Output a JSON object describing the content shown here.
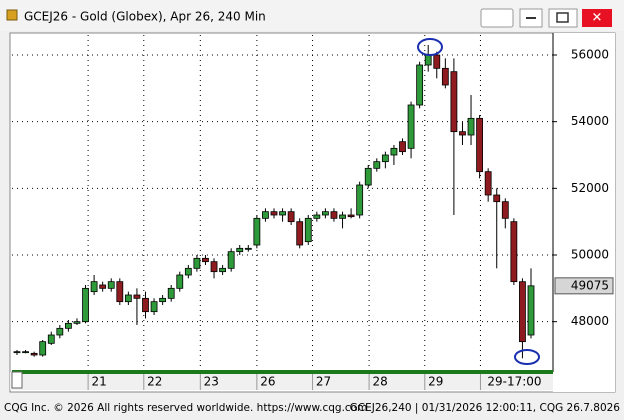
{
  "window_title": "GCEJ26 - Gold (Globex), Apr 26, 240 Min",
  "chart_data": {
    "type": "candlestick",
    "up_color": "#2f9a3a",
    "down_color": "#8e1b1f",
    "open": [
      47100,
      47100,
      47050,
      47000,
      47350,
      47600,
      47800,
      47950,
      48000,
      48900,
      49100,
      49000,
      49200,
      48600,
      48800,
      48700,
      48300,
      48600,
      48700,
      49000,
      49400,
      49600,
      49900,
      49800,
      49500,
      49600,
      50100,
      50200,
      50300,
      51100,
      51300,
      51200,
      51300,
      51000,
      50400,
      51100,
      51200,
      51300,
      51100,
      51200,
      51200,
      52100,
      52600,
      52800,
      53000,
      53400,
      53200,
      54500,
      55700,
      56000,
      55600,
      55500,
      53700,
      53600,
      54100,
      52500,
      51800,
      51600,
      51000,
      49200,
      47600
    ],
    "high": [
      47150,
      47150,
      47100,
      47450,
      47700,
      47900,
      48050,
      48100,
      49100,
      49400,
      49200,
      49300,
      49300,
      48900,
      49000,
      48900,
      48700,
      48800,
      49100,
      49500,
      49700,
      50000,
      50000,
      49900,
      49700,
      50200,
      50300,
      50300,
      51200,
      51400,
      51400,
      51400,
      51400,
      51100,
      51200,
      51300,
      51400,
      51400,
      51300,
      51400,
      52200,
      52700,
      52900,
      53100,
      53300,
      53500,
      54600,
      55800,
      56300,
      56100,
      55900,
      55900,
      54000,
      54800,
      54200,
      52600,
      52000,
      51700,
      51100,
      49300,
      49600
    ],
    "low": [
      47000,
      47050,
      46950,
      46950,
      47300,
      47500,
      47700,
      47900,
      47950,
      48800,
      48900,
      48900,
      48500,
      48500,
      47900,
      48100,
      48200,
      48500,
      48600,
      48900,
      49300,
      49500,
      49700,
      49300,
      49400,
      49500,
      50000,
      50100,
      50200,
      51000,
      51100,
      51000,
      50900,
      50200,
      50300,
      51000,
      51100,
      51000,
      50800,
      51100,
      51100,
      52000,
      52500,
      52600,
      52700,
      53000,
      52900,
      54400,
      55500,
      55300,
      55000,
      51200,
      53300,
      53300,
      52300,
      51600,
      49600,
      50800,
      49100,
      46900,
      47500
    ],
    "close": [
      47100,
      47100,
      47000,
      47400,
      47600,
      47800,
      47950,
      48000,
      49000,
      49200,
      49000,
      49200,
      48600,
      48800,
      48700,
      48300,
      48600,
      48700,
      49000,
      49400,
      49600,
      49900,
      49800,
      49500,
      49600,
      50100,
      50200,
      50200,
      51100,
      51300,
      51200,
      51300,
      51000,
      50300,
      51100,
      51200,
      51300,
      51100,
      51200,
      51150,
      52100,
      52600,
      52800,
      53000,
      53200,
      53100,
      54500,
      55700,
      56000,
      55600,
      55100,
      53700,
      53600,
      54100,
      52500,
      51800,
      51600,
      51100,
      49200,
      47400,
      49075
    ],
    "ylim": [
      46550,
      56600
    ],
    "yticks": [
      48000,
      50000,
      52000,
      54000,
      56000
    ],
    "xticks": [
      {
        "value": 8.3,
        "label": "21"
      },
      {
        "value": 14.8,
        "label": "22"
      },
      {
        "value": 21.4,
        "label": "23"
      },
      {
        "value": 28,
        "label": "26"
      },
      {
        "value": 34.5,
        "label": "27"
      },
      {
        "value": 41.1,
        "label": "28"
      },
      {
        "value": 47.6,
        "label": "29"
      },
      {
        "value": 54.1,
        "label": "29-17:00"
      }
    ],
    "grid": true,
    "last_price": 49075
  },
  "footer_left": "CQG Inc. © 2026 All rights reserved worldwide. https://www.cqg.com",
  "footer_right": "GCEJ26,240 | 01/31/2026 12:00:11, CQG 26.7.8026"
}
